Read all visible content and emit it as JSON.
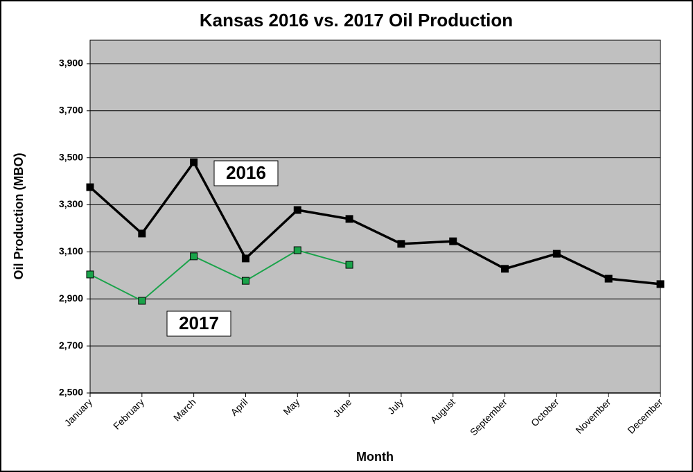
{
  "chart_data": {
    "type": "line",
    "title": "Kansas 2016 vs. 2017 Oil Production",
    "x_label": "Month",
    "y_label": "Oil Production (MBO)",
    "categories": [
      "January",
      "February",
      "March",
      "April",
      "May",
      "June",
      "July",
      "August",
      "September",
      "October",
      "November",
      "December"
    ],
    "series": [
      {
        "name": "2016",
        "color": "#000000",
        "values": [
          3375,
          3178,
          3481,
          3072,
          3278,
          3240,
          3134,
          3145,
          3028,
          3092,
          2986,
          2963
        ]
      },
      {
        "name": "2017",
        "color": "#1aa34a",
        "values": [
          3004,
          2892,
          3081,
          2977,
          3107,
          3045,
          null,
          null,
          null,
          null,
          null,
          null
        ]
      }
    ],
    "ylim": [
      2500,
      4000
    ],
    "yticks": [
      {
        "value": 2500,
        "label": "2,500"
      },
      {
        "value": 2700,
        "label": "2,700"
      },
      {
        "value": 2900,
        "label": "2,900"
      },
      {
        "value": 3100,
        "label": "3,100"
      },
      {
        "value": 3300,
        "label": "3,300"
      },
      {
        "value": 3500,
        "label": "3,500"
      },
      {
        "value": 3700,
        "label": "3,700"
      },
      {
        "value": 3900,
        "label": "3,900"
      }
    ],
    "grid": true,
    "plot_background": "#c0c0c0"
  }
}
